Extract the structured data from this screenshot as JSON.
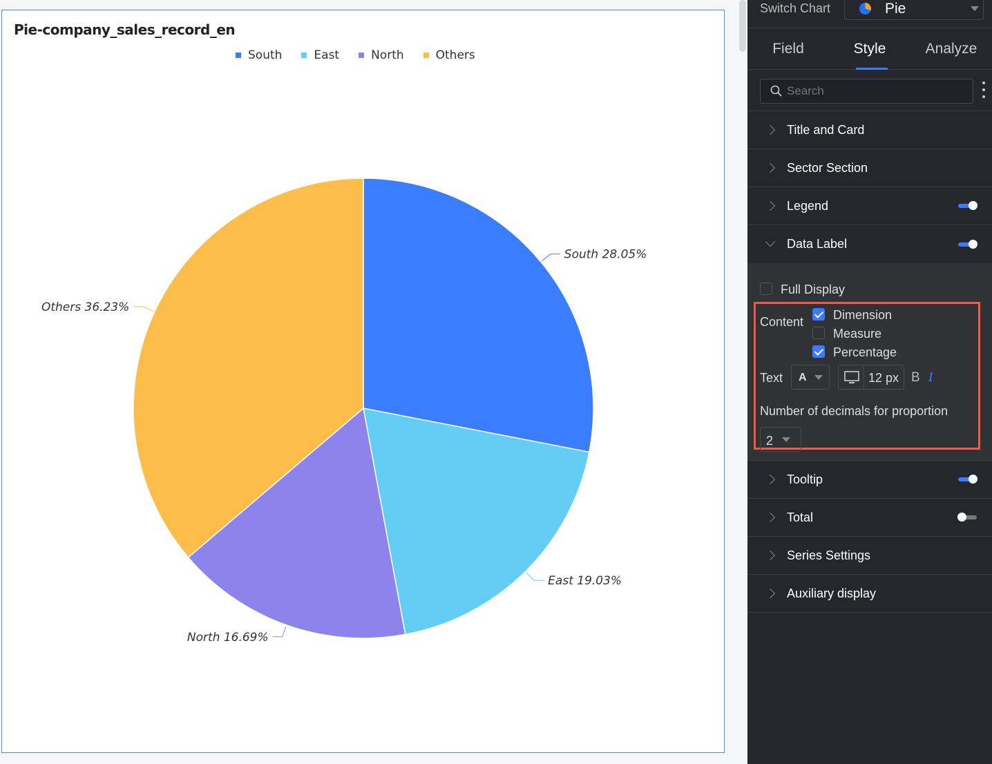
{
  "chart_data": {
    "type": "pie",
    "title": "Pie-company_sales_record_en",
    "legend_position": "top",
    "categories": [
      "South",
      "East",
      "North",
      "Others"
    ],
    "values": [
      28.05,
      19.03,
      16.69,
      36.23
    ],
    "labels": [
      "South 28.05%",
      "East 19.03%",
      "North 16.69%",
      "Others 36.23%"
    ],
    "colors": [
      "#3a7eff",
      "#63cdf5",
      "#8c84ec",
      "#fcbd4a"
    ]
  },
  "panel": {
    "switch_chart_label": "Switch Chart",
    "chart_type": "Pie",
    "tabs": [
      "Field",
      "Style",
      "Analyze"
    ],
    "active_tab": "Style",
    "search_placeholder": "Search",
    "sections_top": [
      {
        "label": "Title and Card"
      },
      {
        "label": "Sector Section"
      },
      {
        "label": "Legend",
        "toggle": true
      },
      {
        "label": "Data Label",
        "toggle": true
      }
    ],
    "data_label": {
      "full_display": "Full Display",
      "content_label": "Content",
      "options": [
        {
          "label": "Dimension",
          "checked": true
        },
        {
          "label": "Measure",
          "checked": false
        },
        {
          "label": "Percentage",
          "checked": true
        }
      ],
      "text_label": "Text",
      "font_color_glyph": "A",
      "font_size": "12 px",
      "bold_glyph": "B",
      "italic_glyph": "I",
      "decimals_label": "Number of decimals for proportion",
      "decimals_value": "2"
    },
    "sections_bottom": [
      {
        "label": "Tooltip",
        "toggle": true
      },
      {
        "label": "Total",
        "toggle": false
      },
      {
        "label": "Series Settings"
      },
      {
        "label": "Auxiliary display"
      }
    ],
    "accent": "#3a7bff",
    "highlight": "#f0594c"
  }
}
